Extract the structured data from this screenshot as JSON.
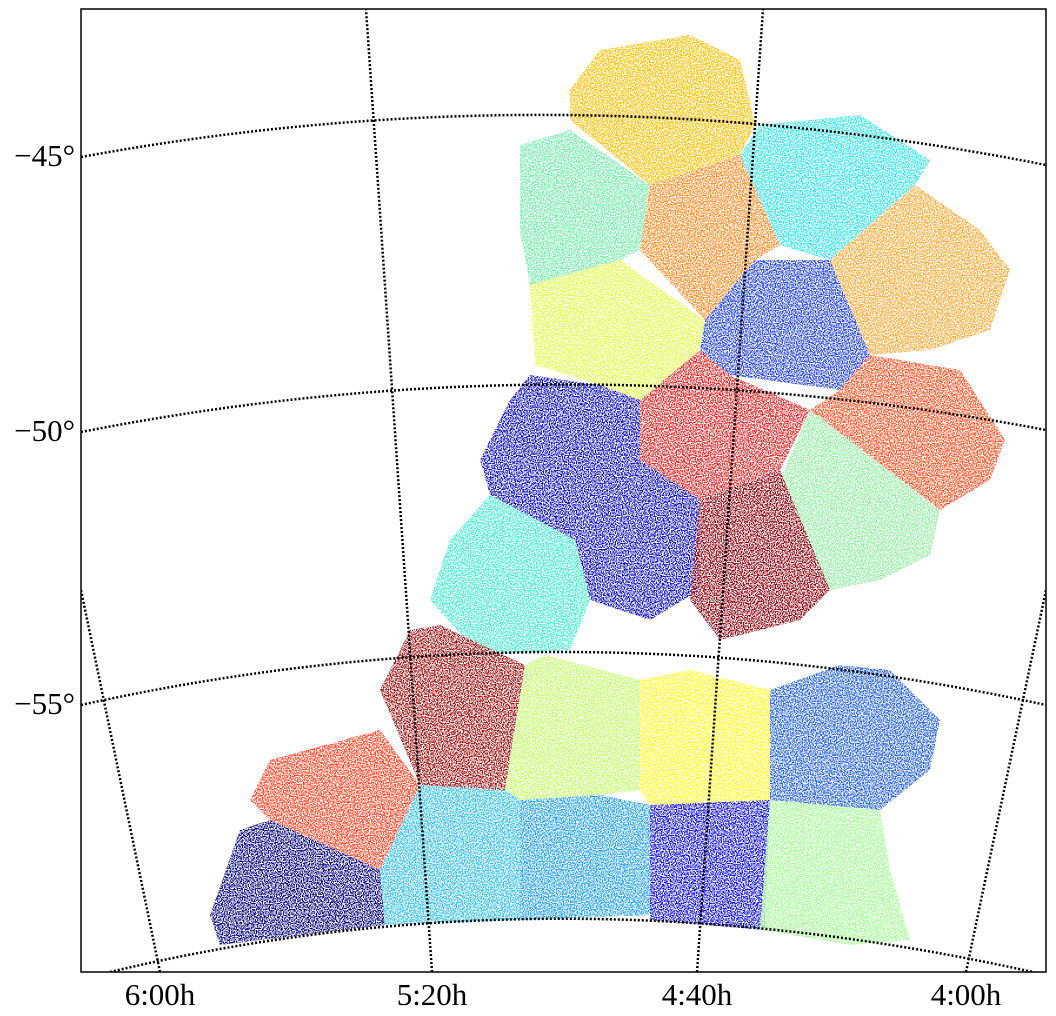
{
  "axes": {
    "x_labels": [
      "6:00h",
      "5:20h",
      "4:40h",
      "4:00h"
    ],
    "y_labels": [
      "−45°",
      "−50°",
      "−55°"
    ]
  }
}
